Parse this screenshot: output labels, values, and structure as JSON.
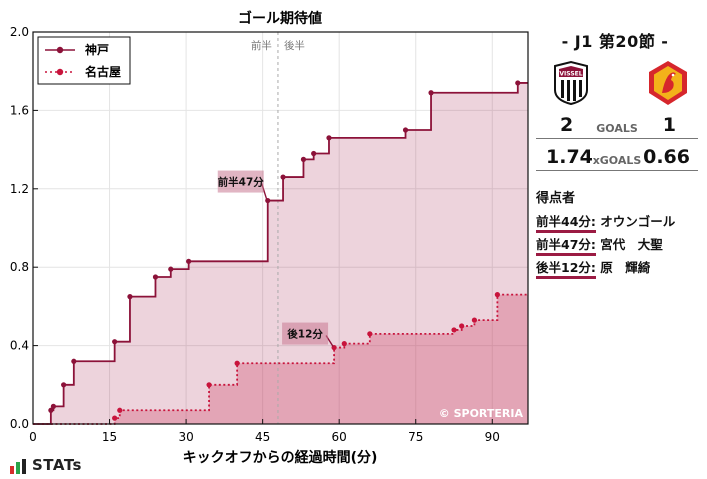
{
  "chart_data": {
    "type": "line",
    "title": "ゴール期待値",
    "xlabel": "キックオフからの経過時間(分)",
    "ylabel": "",
    "xlim": [
      0,
      97
    ],
    "ylim": [
      0,
      2.0
    ],
    "xticks": [
      0,
      15,
      30,
      45,
      60,
      75,
      90
    ],
    "yticks": [
      0.0,
      0.4,
      0.8,
      1.2,
      1.6,
      2.0
    ],
    "grid": true,
    "legend": "top-left",
    "halftime_minute": 48,
    "halftime_labels": [
      "前半",
      "後半"
    ],
    "series": [
      {
        "name": "神戸",
        "color": "#8c1239",
        "fill": "rgba(165,35,80,0.20)",
        "line_style": "solid",
        "x": [
          3.5,
          4,
          6,
          8,
          16,
          19,
          24,
          27,
          30.5,
          46,
          49,
          53,
          55,
          58,
          73,
          78,
          95,
          97
        ],
        "y": [
          0.07,
          0.09,
          0.2,
          0.32,
          0.42,
          0.65,
          0.75,
          0.79,
          0.83,
          1.14,
          1.26,
          1.35,
          1.38,
          1.46,
          1.5,
          1.69,
          1.74,
          1.74
        ]
      },
      {
        "name": "名古屋",
        "color": "#c8143c",
        "fill": "rgba(205,60,95,0.30)",
        "line_style": "dotted",
        "x": [
          16,
          17,
          34.5,
          40,
          59,
          61,
          66,
          82.5,
          84,
          86.5,
          91,
          97
        ],
        "y": [
          0.03,
          0.07,
          0.2,
          0.31,
          0.39,
          0.41,
          0.46,
          0.48,
          0.5,
          0.53,
          0.66,
          0.66
        ]
      }
    ],
    "annotations": [
      {
        "text": "前半47分",
        "x": 46,
        "y": 1.14,
        "series": 0
      },
      {
        "text": "後12分",
        "x": 59,
        "y": 0.39,
        "series": 1
      }
    ],
    "watermark": "© SPORTERIA"
  },
  "match": {
    "title": "- J1 第20節 -",
    "home_goals": "2",
    "away_goals": "1",
    "goals_label": "GOALS",
    "home_xg": "1.74",
    "away_xg": "0.66",
    "xg_label": "xGOALS",
    "home_crest_text": "VISSEL",
    "home_color": "#8c1239",
    "away_colors": [
      "#d6262c",
      "#f3b21a"
    ]
  },
  "scorers": {
    "title": "得点者",
    "items": [
      {
        "time": "前半44分:",
        "name": "オウンゴール"
      },
      {
        "time": "前半47分:",
        "name": "宮代　大聖"
      },
      {
        "time": "後半12分:",
        "name": "原　輝綺"
      }
    ]
  },
  "brand": {
    "name": "STATs"
  }
}
